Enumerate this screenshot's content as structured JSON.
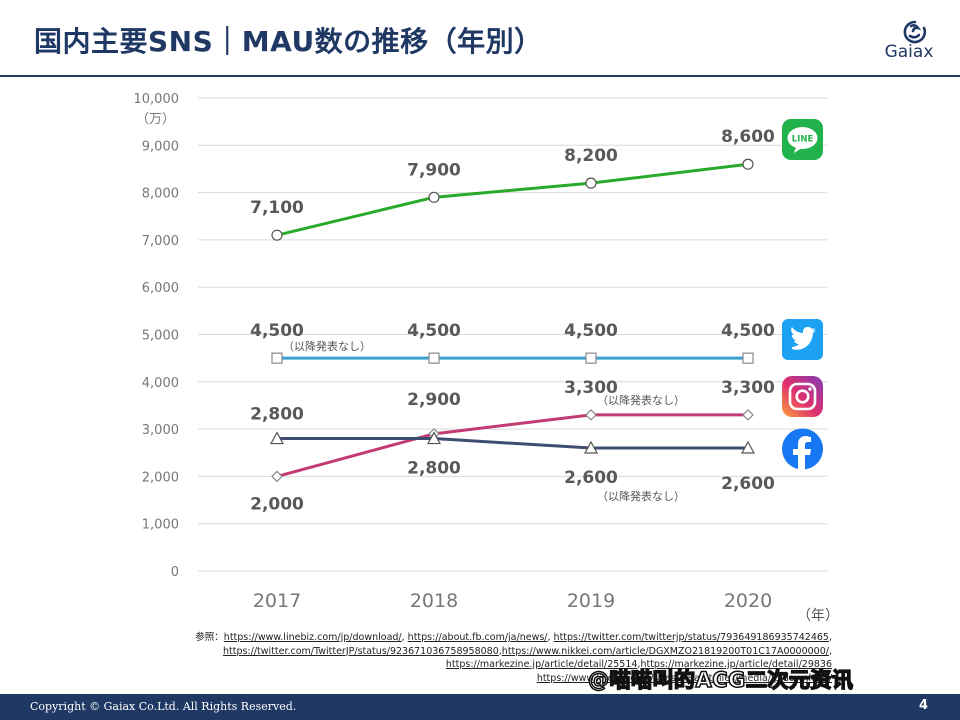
{
  "header": {
    "title": "国内主要SNS｜MAU数の推移（年別）",
    "brand": "Gaiax"
  },
  "chart_data": {
    "type": "line",
    "ylim": [
      0,
      10000
    ],
    "y_ticks": [
      "0",
      "1,000",
      "2,000",
      "3,000",
      "4,000",
      "5,000",
      "6,000",
      "7,000",
      "8,000",
      "9,000",
      "10,000"
    ],
    "y_unit": "（万）",
    "x_unit": "（年）",
    "categories": [
      "2017",
      "2018",
      "2019",
      "2020"
    ],
    "grid": true,
    "series": [
      {
        "icon": "line-app-icon",
        "color": "#2aaa2a",
        "marker": "circle",
        "values": [
          7100,
          7900,
          8200,
          8600
        ],
        "labels": [
          "7,100",
          "7,900",
          "8,200",
          "8,600"
        ]
      },
      {
        "icon": "twitter-icon",
        "color": "#3aa0d2",
        "marker": "square",
        "values": [
          4500,
          4500,
          4500,
          4500
        ],
        "labels": [
          "4,500",
          "4,500",
          "4,500",
          "4,500"
        ]
      },
      {
        "icon": "instagram-icon",
        "color": "#c23b72",
        "marker": "diamond",
        "values": [
          2000,
          2900,
          3300,
          3300
        ],
        "labels": [
          "2,000",
          "2,900",
          "3,300",
          "3,300"
        ]
      },
      {
        "icon": "facebook-icon",
        "color": "#3d4e72",
        "marker": "triangle",
        "values": [
          2800,
          2800,
          2600,
          2600
        ],
        "labels": [
          "2,800",
          "2,800",
          "2,600",
          "2,600"
        ]
      }
    ],
    "annotations": [
      "（以降発表なし）",
      "（以降発表なし）",
      "（以降発表なし）"
    ]
  },
  "references": {
    "lead": "参照：",
    "links": [
      "https://www.linebiz.com/jp/download/",
      "https://about.fb.com/ja/news/",
      "https://twitter.com/twitterjp/status/793649186935742465",
      "https://twitter.com/TwitterJP/status/923671036758958080",
      "https://www.nikkei.com/article/DGXMZO21819200T01C17A0000000/",
      "https://markezine.jp/article/detail/25514",
      "https://markezine.jp/article/detail/29836",
      "https://www.linebiz.com/sites/default/files/media/jp/download/"
    ]
  },
  "footer": {
    "copyright": "Copyright © Gaiax Co.Ltd. All Rights Reserved.",
    "page": "4"
  },
  "watermark": "@喵喵叫的ACG二次元资讯"
}
